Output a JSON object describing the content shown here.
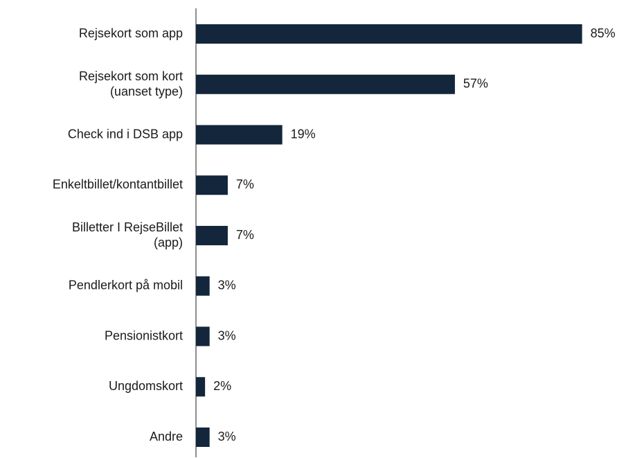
{
  "chart_data": {
    "type": "bar",
    "orientation": "horizontal",
    "categories": [
      "Rejsekort som app",
      "Rejsekort som kort\n(uanset type)",
      "Check ind i DSB app",
      "Enkeltbillet/kontantbillet",
      "Billetter I RejseBillet\n(app)",
      "Pendlerkort på mobil",
      "Pensionistkort",
      "Ungdomskort",
      "Andre"
    ],
    "values": [
      85,
      57,
      19,
      7,
      7,
      3,
      3,
      2,
      3
    ],
    "value_labels": [
      "85%",
      "57%",
      "19%",
      "7%",
      "7%",
      "3%",
      "3%",
      "2%",
      "3%"
    ],
    "color": "#13263b"
  }
}
